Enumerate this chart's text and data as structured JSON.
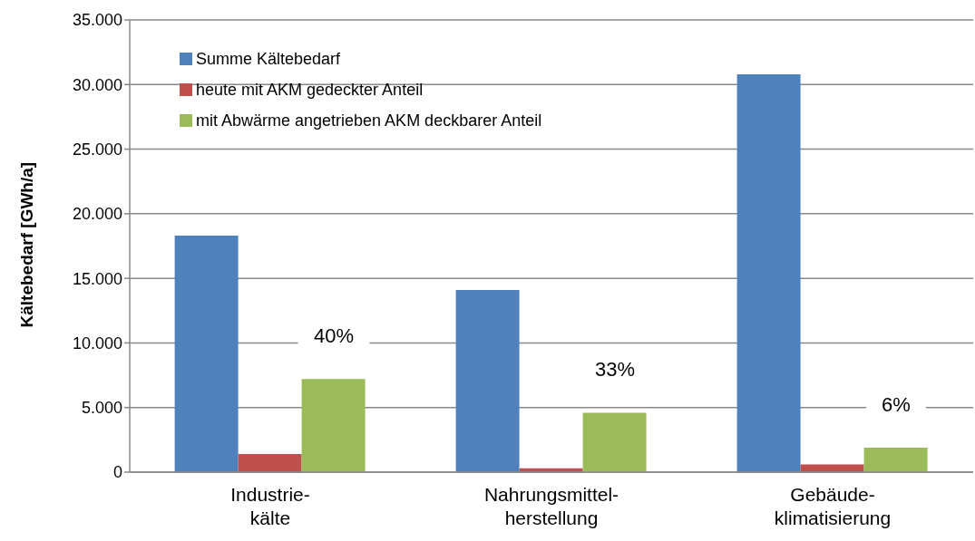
{
  "chart_data": {
    "type": "bar",
    "ylabel": "Kältebedarf [GWh/a]",
    "categories": [
      "Industrie-\nkälte",
      "Nahrungsmittel-\nherstellung",
      "Gebäude-\nklimatisierung"
    ],
    "series": [
      {
        "name": "Summe Kältebedarf",
        "color": "#4f81bd",
        "values": [
          18300,
          14100,
          30800
        ]
      },
      {
        "name": "heute mit AKM gedeckter Anteil",
        "color": "#c0504d",
        "values": [
          1400,
          300,
          600
        ]
      },
      {
        "name": "mit Abwärme angetrieben AKM deckbarer Anteil",
        "color": "#9bbb59",
        "values": [
          7200,
          4600,
          1900
        ]
      }
    ],
    "ylim": [
      0,
      35000
    ],
    "yticks": [
      {
        "value": 0,
        "label": "0"
      },
      {
        "value": 5000,
        "label": "5.000"
      },
      {
        "value": 10000,
        "label": "10.000"
      },
      {
        "value": 15000,
        "label": "15.000"
      },
      {
        "value": 20000,
        "label": "20.000"
      },
      {
        "value": 25000,
        "label": "25.000"
      },
      {
        "value": 30000,
        "label": "30.000"
      },
      {
        "value": 35000,
        "label": "35.000"
      }
    ],
    "annotations": [
      "40%",
      "33%",
      "6%"
    ],
    "grid": "y",
    "legend": "top left"
  }
}
